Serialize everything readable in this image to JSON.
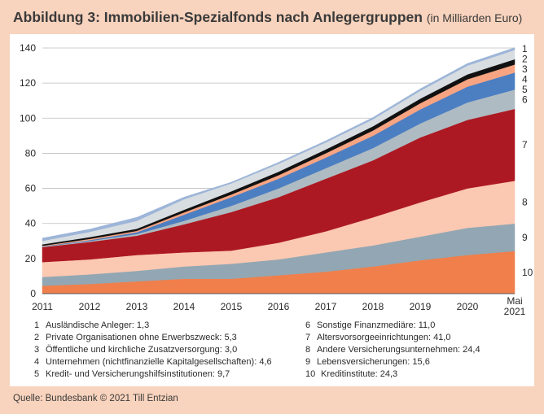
{
  "title": "Abbildung 3: Immobilien-Spezialfonds nach Anlegergruppen",
  "unit": "(in Milliarden Euro)",
  "source": "Quelle: Bundesbank © 2021 Till Entzian",
  "chart_data": {
    "type": "area",
    "stacked": true,
    "x": [
      "2011",
      "2012",
      "2013",
      "2014",
      "2015",
      "2016",
      "2017",
      "2018",
      "2019",
      "2020",
      "Mai 2021"
    ],
    "x_label_lines": [
      [
        "2011"
      ],
      [
        "2012"
      ],
      [
        "2013"
      ],
      [
        "2014"
      ],
      [
        "2015"
      ],
      [
        "2016"
      ],
      [
        "2017"
      ],
      [
        "2018"
      ],
      [
        "2019"
      ],
      [
        "2020"
      ],
      [
        "Mai",
        "2021"
      ]
    ],
    "yticks": [
      "0",
      "20",
      "40",
      "60",
      "80",
      "100",
      "120",
      "140"
    ],
    "ylim": [
      0,
      140
    ],
    "grid": true,
    "legend": [
      {
        "num": "1",
        "text": "Ausländische Anleger: 1,3"
      },
      {
        "num": "2",
        "text": "Private Organisationen ohne Erwerbszweck: 5,3"
      },
      {
        "num": "3",
        "text": "Öffentliche und kirchliche Zusatzversorgung:  3,0"
      },
      {
        "num": "4",
        "text": "Unternehmen (nichtfinanzielle Kapitalgesellschaften): 4,6"
      },
      {
        "num": "5",
        "text": "Kredit- und Versicherungshilfsinstitutionen: 9,7"
      },
      {
        "num": "6",
        "text": "Sonstige Finanzmediäre: 11,0"
      },
      {
        "num": "7",
        "text": "Altersvorsorgeeinrichtungen: 41,0"
      },
      {
        "num": "8",
        "text": "Andere Versicherungsunternehmen: 24,4"
      },
      {
        "num": "9",
        "text": "Lebensversicherungen: 15,6"
      },
      {
        "num": "10",
        "text": "Kreditinstitute: 24,3"
      }
    ],
    "series": [
      {
        "id": "10",
        "color": "#f07f4c",
        "values": [
          4.5,
          5.5,
          7,
          8.5,
          8.5,
          10.5,
          12.5,
          15.5,
          19,
          22,
          24.3
        ]
      },
      {
        "id": "9",
        "color": "#92a7b3",
        "values": [
          5,
          5.5,
          6,
          7,
          8.5,
          9,
          11,
          12,
          13.5,
          15.5,
          15.6
        ]
      },
      {
        "id": "8",
        "color": "#fbc8b2",
        "values": [
          8.5,
          8.5,
          9,
          8,
          7.5,
          9.5,
          12,
          16,
          19.5,
          22.5,
          24.4
        ]
      },
      {
        "id": "7",
        "color": "#ad1922",
        "values": [
          8.5,
          10,
          11,
          16,
          22,
          26,
          30,
          32.5,
          37,
          39,
          41
        ]
      },
      {
        "id": "6",
        "color": "#aebbc2",
        "values": [
          0.3,
          0.5,
          1,
          2,
          3.5,
          5,
          6,
          7,
          8,
          10,
          11
        ]
      },
      {
        "id": "5",
        "color": "#4c7ec2",
        "values": [
          0.2,
          0.5,
          1,
          3.5,
          5,
          5.5,
          6,
          7,
          8,
          9,
          9.7
        ]
      },
      {
        "id": "4",
        "color": "#f7a482",
        "values": [
          0.3,
          0.7,
          0.8,
          1.3,
          1.5,
          2,
          2.5,
          3,
          3.5,
          4.2,
          4.6
        ]
      },
      {
        "id": "3",
        "color": "#111111",
        "values": [
          0.8,
          1,
          1.2,
          1.5,
          1.8,
          2,
          2.2,
          2.4,
          2.6,
          2.8,
          3
        ]
      },
      {
        "id": "2",
        "color": "#d8dde1",
        "values": [
          2,
          3,
          4.5,
          6,
          4.5,
          4.5,
          4,
          4,
          4.5,
          5,
          5.3
        ]
      },
      {
        "id": "1",
        "color": "#9db5d8",
        "values": [
          1.5,
          1.5,
          2,
          1.2,
          0.7,
          0.8,
          0.9,
          1,
          1.1,
          1.2,
          1.3
        ]
      }
    ]
  }
}
